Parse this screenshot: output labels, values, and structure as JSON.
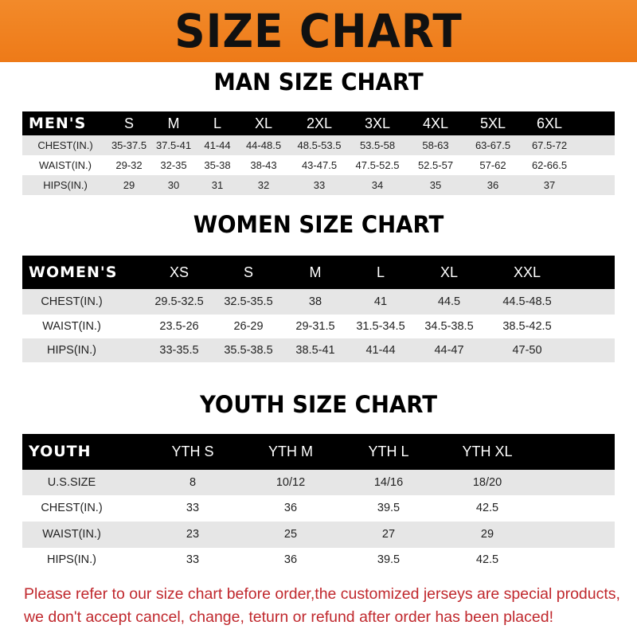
{
  "banner": {
    "title": "SIZE CHART",
    "color": "#ee7a18"
  },
  "men": {
    "title": "MAN SIZE CHART",
    "header": [
      "MEN'S",
      "S",
      "M",
      "L",
      "XL",
      "2XL",
      "3XL",
      "4XL",
      "5XL",
      "6XL"
    ],
    "rows": [
      [
        "CHEST(IN.)",
        "35-37.5",
        "37.5-41",
        "41-44",
        "44-48.5",
        "48.5-53.5",
        "53.5-58",
        "58-63",
        "63-67.5",
        "67.5-72"
      ],
      [
        "WAIST(IN.)",
        "29-32",
        "32-35",
        "35-38",
        "38-43",
        "43-47.5",
        "47.5-52.5",
        "52.5-57",
        "57-62",
        "62-66.5"
      ],
      [
        "HIPS(IN.)",
        "29",
        "30",
        "31",
        "32",
        "33",
        "34",
        "35",
        "36",
        "37"
      ]
    ]
  },
  "women": {
    "title": "WOMEN SIZE CHART",
    "header": [
      "WOMEN'S",
      "XS",
      "S",
      "M",
      "L",
      "XL",
      "XXL"
    ],
    "rows": [
      [
        "CHEST(IN.)",
        "29.5-32.5",
        "32.5-35.5",
        "38",
        "41",
        "44.5",
        "44.5-48.5"
      ],
      [
        "WAIST(IN.)",
        "23.5-26",
        "26-29",
        "29-31.5",
        "31.5-34.5",
        "34.5-38.5",
        "38.5-42.5"
      ],
      [
        "HIPS(IN.)",
        "33-35.5",
        "35.5-38.5",
        "38.5-41",
        "41-44",
        "44-47",
        "47-50"
      ]
    ]
  },
  "youth": {
    "title": "YOUTH SIZE CHART",
    "header": [
      "YOUTH",
      "YTH S",
      "YTH M",
      "YTH L",
      "YTH XL"
    ],
    "rows": [
      [
        "U.S.SIZE",
        "8",
        "10/12",
        "14/16",
        "18/20"
      ],
      [
        "CHEST(IN.)",
        "33",
        "36",
        "39.5",
        "42.5"
      ],
      [
        "WAIST(IN.)",
        "23",
        "25",
        "27",
        "29"
      ],
      [
        "HIPS(IN.)",
        "33",
        "36",
        "39.5",
        "42.5"
      ]
    ]
  },
  "note": {
    "line1": "Please refer to our size chart before order,the customized jerseys are special products,",
    "line2": "we don't accept cancel, change, teturn or refund after order has been placed!",
    "color": "#c0282d"
  }
}
